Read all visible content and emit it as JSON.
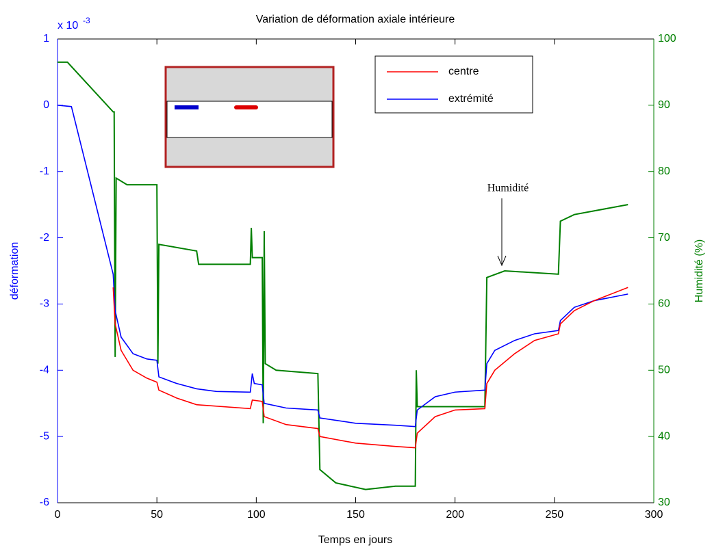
{
  "chart_data": {
    "type": "line",
    "title": "Variation de déformation axiale intérieure",
    "xlabel": "Temps en jours",
    "ylabel": "déformation",
    "y2label": "Humidité (%)",
    "y_exponent_base": "x 10",
    "y_exponent": "-3",
    "annotation": "Humidité",
    "xlim": [
      0,
      300
    ],
    "xticks": [
      0,
      50,
      100,
      150,
      200,
      250,
      300
    ],
    "ylim": [
      -6,
      1
    ],
    "yticks": [
      -6,
      -5,
      -4,
      -3,
      -2,
      -1,
      0,
      1
    ],
    "ycolor": "#0000ff",
    "y2lim": [
      30,
      100
    ],
    "y2ticks": [
      30,
      40,
      50,
      60,
      70,
      80,
      90,
      100
    ],
    "y2color": "#008000",
    "series": [
      {
        "name": "centre",
        "color": "#ff0000",
        "x": [
          28,
          29,
          32,
          38,
          45,
          50,
          51,
          60,
          70,
          97,
          98,
          103,
          104,
          115,
          131,
          132,
          150,
          170,
          180,
          181,
          190,
          200,
          215,
          216,
          220,
          230,
          240,
          252,
          253,
          260,
          270,
          287
        ],
        "values": [
          -2.75,
          -3.3,
          -3.7,
          -4.0,
          -4.12,
          -4.18,
          -4.3,
          -4.42,
          -4.52,
          -4.58,
          -4.45,
          -4.47,
          -4.7,
          -4.82,
          -4.88,
          -5.0,
          -5.1,
          -5.15,
          -5.17,
          -4.95,
          -4.7,
          -4.6,
          -4.58,
          -4.2,
          -4.0,
          -3.75,
          -3.55,
          -3.45,
          -3.3,
          -3.1,
          -2.95,
          -2.75
        ]
      },
      {
        "name": "extrémité",
        "color": "#0000ff",
        "x": [
          0,
          7,
          28,
          29,
          32,
          38,
          45,
          50,
          51,
          60,
          70,
          80,
          97,
          98,
          99,
          103,
          104,
          115,
          131,
          132,
          150,
          170,
          180,
          181,
          190,
          200,
          215,
          216,
          220,
          230,
          240,
          252,
          253,
          260,
          270,
          287
        ],
        "values": [
          0,
          -0.02,
          -2.55,
          -3.1,
          -3.5,
          -3.75,
          -3.83,
          -3.85,
          -4.1,
          -4.2,
          -4.28,
          -4.32,
          -4.33,
          -4.05,
          -4.2,
          -4.22,
          -4.5,
          -4.57,
          -4.6,
          -4.72,
          -4.8,
          -4.83,
          -4.85,
          -4.6,
          -4.4,
          -4.33,
          -4.3,
          -3.9,
          -3.7,
          -3.55,
          -3.45,
          -3.4,
          -3.25,
          -3.05,
          -2.95,
          -2.85
        ]
      },
      {
        "color": "#008000",
        "axis": "y2",
        "x": [
          0,
          5,
          28,
          28.5,
          29,
          29.5,
          35,
          50,
          50.5,
          51,
          70,
          71,
          97,
          97.5,
          98,
          103,
          103.5,
          104,
          104.5,
          110,
          131,
          132,
          140,
          155,
          170,
          180,
          180.5,
          181,
          215,
          216,
          225,
          252,
          253,
          260,
          287
        ],
        "values": [
          96.5,
          96.5,
          89,
          89,
          52,
          79,
          78,
          78,
          51,
          69,
          68,
          66,
          66,
          71.5,
          67,
          67,
          42,
          71,
          51,
          50,
          49.5,
          35,
          33,
          32,
          32.5,
          32.5,
          50,
          44.5,
          44.5,
          64,
          65,
          64.5,
          72.5,
          73.5,
          75
        ]
      }
    ]
  }
}
